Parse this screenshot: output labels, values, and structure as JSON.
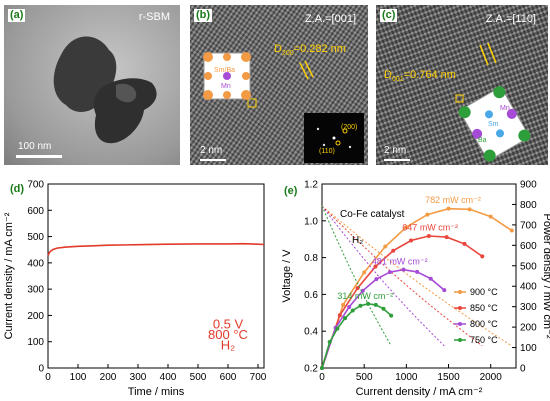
{
  "panel_a": {
    "label": "(a)",
    "title": "r-SBM",
    "scalebar": "100 nm"
  },
  "panel_b": {
    "label": "(b)",
    "zone_axis": "Z.A.=[001]",
    "d_label": "D",
    "d_sub": "200",
    "d_value": "=0.282 nm",
    "atoms": [
      "Sm/Ba",
      "Mn"
    ],
    "fft_spots": [
      "(200)",
      "(110)"
    ],
    "scalebar": "2 nm"
  },
  "panel_c": {
    "label": "(c)",
    "zone_axis": "Z.A.=[110]",
    "d_label": "D",
    "d_sub": "001",
    "d_value": "=0.764 nm",
    "atoms": [
      "Mn",
      "Sm",
      "Ba"
    ],
    "scalebar": "2 nm"
  },
  "colors": {
    "red": "#e23a2a",
    "panel_green": "#1a7a1a",
    "s900": "#f39a45",
    "s850": "#e8453c",
    "s800": "#a64bd6",
    "s750": "#2e9e3a"
  },
  "chart_data": [
    {
      "type": "line",
      "label": "(d)",
      "xlabel": "Time / mins",
      "ylabel": "Current density / mA cm⁻²",
      "xlim": [
        0,
        720
      ],
      "ylim": [
        0,
        700
      ],
      "xticks": [
        0,
        100,
        200,
        300,
        400,
        500,
        600,
        700
      ],
      "yticks": [
        0,
        100,
        200,
        300,
        400,
        500,
        600,
        700
      ],
      "annotations": [
        "0.5 V",
        "800 °C",
        "H₂"
      ],
      "series": [
        {
          "x": [
            0,
            5,
            15,
            30,
            60,
            100,
            150,
            200,
            300,
            400,
            500,
            600,
            650,
            700,
            720
          ],
          "y": [
            428,
            440,
            450,
            456,
            460,
            463,
            465,
            467,
            469,
            471,
            472,
            472,
            473,
            471,
            470
          ]
        }
      ]
    },
    {
      "type": "line",
      "label": "(e)",
      "xlabel": "Current density / mA cm⁻²",
      "ylabel": "Voltage / V",
      "ylabel_right": "Power density / mW cm⁻²",
      "xlim": [
        0,
        2300
      ],
      "ylim": [
        0.2,
        1.2
      ],
      "ylim_right": [
        0,
        900
      ],
      "xticks": [
        0,
        500,
        1000,
        1500,
        2000
      ],
      "yticks": [
        0.2,
        0.4,
        0.6,
        0.8,
        1.0,
        1.2
      ],
      "yticks_right": [
        0,
        100,
        200,
        300,
        400,
        500,
        600,
        700,
        800,
        900
      ],
      "annotations": [
        "Co-Fe catalyst",
        "H₂"
      ],
      "peak_labels": [
        "782 mW cm⁻²",
        "647 mW cm⁻²",
        "481 mW cm⁻²",
        "314 mW cm⁻²"
      ],
      "series": [
        {
          "name": "900 °C",
          "max_current": 2250,
          "ocv": 1.08,
          "peak_current": 1600,
          "peak_power": 782
        },
        {
          "name": "850 °C",
          "max_current": 1900,
          "ocv": 1.08,
          "peak_current": 1330,
          "peak_power": 647
        },
        {
          "name": "800 °C",
          "max_current": 1450,
          "ocv": 1.08,
          "peak_current": 970,
          "peak_power": 481
        },
        {
          "name": "750 °C",
          "max_current": 820,
          "ocv": 1.08,
          "peak_current": 560,
          "peak_power": 314
        }
      ]
    }
  ]
}
